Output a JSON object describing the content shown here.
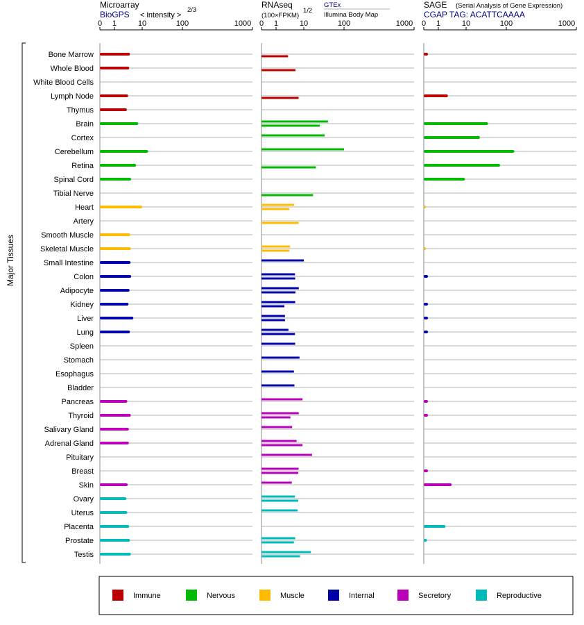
{
  "panels": [
    {
      "title": "Microarray",
      "subtitle": "BioGPS",
      "unit_label": "< intensity >",
      "unit_exp": "2/3",
      "source_label": "",
      "scale_labels": [
        "0",
        "1",
        "10",
        "100",
        "1000"
      ],
      "rows": [
        [
          3.6
        ],
        [
          3.4
        ],
        [
          null
        ],
        [
          3.1
        ],
        [
          2.8
        ],
        [
          7.2
        ],
        [
          null
        ],
        [
          14.0
        ],
        [
          6.0
        ],
        [
          4.0
        ],
        [
          null
        ],
        [
          10.0
        ],
        [
          null
        ],
        [
          3.7
        ],
        [
          3.9
        ],
        [
          3.8
        ],
        [
          4.0
        ],
        [
          3.5
        ],
        [
          3.2
        ],
        [
          4.8
        ],
        [
          3.6
        ],
        [
          null
        ],
        [
          null
        ],
        [
          null
        ],
        [
          null
        ],
        [
          2.9
        ],
        [
          3.9
        ],
        [
          3.3
        ],
        [
          3.3
        ],
        [
          null
        ],
        [
          null
        ],
        [
          3.0
        ],
        [
          2.7
        ],
        [
          2.9
        ],
        [
          3.4
        ],
        [
          3.6
        ],
        [
          3.9
        ]
      ]
    },
    {
      "title": "RNAseq",
      "subtitle": "",
      "unit_label": "(100×FPKM)",
      "unit_exp": "1/2",
      "source_label": "GTEx",
      "source_sub": "Illumina Body Map",
      "scale_labels": [
        "0",
        "1",
        "10",
        "100",
        "1000"
      ],
      "rows": [
        [
          null,
          2.7
        ],
        [
          null,
          5.0
        ],
        [
          null,
          null
        ],
        [
          null,
          6.5
        ],
        [
          null,
          null
        ],
        [
          40.0,
          25.0
        ],
        [
          33.0,
          null
        ],
        [
          100.0,
          null
        ],
        [
          null,
          20.0
        ],
        [
          null,
          null
        ],
        [
          null,
          17.0
        ],
        [
          4.5,
          3.0
        ],
        [
          null,
          6.5
        ],
        [
          null,
          null
        ],
        [
          3.2,
          3.0
        ],
        [
          10.0,
          null
        ],
        [
          4.8,
          4.9
        ],
        [
          6.6,
          5.0
        ],
        [
          4.9,
          2.0
        ],
        [
          2.1,
          2.1
        ],
        [
          2.8,
          4.8
        ],
        [
          4.9,
          null
        ],
        [
          7.0,
          null
        ],
        [
          4.4,
          null
        ],
        [
          4.6,
          null
        ],
        [
          9.0,
          null
        ],
        [
          6.6,
          3.3
        ],
        [
          3.8,
          null
        ],
        [
          5.5,
          9.0
        ],
        [
          16.0,
          null
        ],
        [
          6.5,
          6.3
        ],
        [
          3.7,
          null
        ],
        [
          4.8,
          6.3
        ],
        [
          6.0,
          null
        ],
        [
          null,
          null
        ],
        [
          4.9,
          4.4
        ],
        [
          15.0,
          7.3
        ]
      ]
    },
    {
      "title": "SAGE",
      "subtitle": "CGAP TAG: ACATTCAAAA",
      "unit_label": "",
      "unit_exp": "",
      "source_label": "(Serial Analysis of Gene Expression)",
      "scale_labels": [
        "0",
        "1",
        "10",
        "100",
        "1000"
      ],
      "rows": [
        [
          0.15
        ],
        [
          null
        ],
        [
          null
        ],
        [
          2.2
        ],
        [
          null
        ],
        [
          35.0
        ],
        [
          22.0
        ],
        [
          130.0
        ],
        [
          70.0
        ],
        [
          9.0
        ],
        [
          null
        ],
        [
          0.05
        ],
        [
          null
        ],
        [
          null
        ],
        [
          0.05
        ],
        [
          null
        ],
        [
          0.15
        ],
        [
          null
        ],
        [
          0.15
        ],
        [
          0.15
        ],
        [
          0.15
        ],
        [
          null
        ],
        [
          null
        ],
        [
          null
        ],
        [
          null
        ],
        [
          0.15
        ],
        [
          0.15
        ],
        [
          null
        ],
        [
          null
        ],
        [
          null
        ],
        [
          0.15
        ],
        [
          3.0
        ],
        [
          null
        ],
        [
          null
        ],
        [
          1.8
        ],
        [
          0.1
        ],
        [
          null
        ]
      ]
    }
  ],
  "tissues": [
    "Bone Marrow",
    "Whole Blood",
    "White Blood Cells",
    "Lymph Node",
    "Thymus",
    "Brain",
    "Cortex",
    "Cerebellum",
    "Retina",
    "Spinal Cord",
    "Tibial Nerve",
    "Heart",
    "Artery",
    "Smooth Muscle",
    "Skeletal Muscle",
    "Small Intestine",
    "Colon",
    "Adipocyte",
    "Kidney",
    "Liver",
    "Lung",
    "Spleen",
    "Stomach",
    "Esophagus",
    "Bladder",
    "Pancreas",
    "Thyroid",
    "Salivary Gland",
    "Adrenal Gland",
    "Pituitary",
    "Breast",
    "Skin",
    "Ovary",
    "Uterus",
    "Placenta",
    "Prostate",
    "Testis"
  ],
  "tissue_group": [
    0,
    0,
    0,
    0,
    0,
    1,
    1,
    1,
    1,
    1,
    1,
    2,
    2,
    2,
    2,
    3,
    3,
    3,
    3,
    3,
    3,
    3,
    3,
    3,
    3,
    4,
    4,
    4,
    4,
    4,
    4,
    4,
    5,
    5,
    5,
    5,
    5
  ],
  "y_axis_label": "Major Tissues",
  "legend": [
    {
      "name": "Immune",
      "color": "#bb0000"
    },
    {
      "name": "Nervous",
      "color": "#00bb00"
    },
    {
      "name": "Muscle",
      "color": "#ffbb00"
    },
    {
      "name": "Internal",
      "color": "#0000aa"
    },
    {
      "name": "Secretory",
      "color": "#bb00bb"
    },
    {
      "name": "Reproductive",
      "color": "#00bbbb"
    }
  ],
  "chart_data": {
    "type": "bar",
    "categories": [
      "Bone Marrow",
      "Whole Blood",
      "White Blood Cells",
      "Lymph Node",
      "Thymus",
      "Brain",
      "Cortex",
      "Cerebellum",
      "Retina",
      "Spinal Cord",
      "Tibial Nerve",
      "Heart",
      "Artery",
      "Smooth Muscle",
      "Skeletal Muscle",
      "Small Intestine",
      "Colon",
      "Adipocyte",
      "Kidney",
      "Liver",
      "Lung",
      "Spleen",
      "Stomach",
      "Esophagus",
      "Bladder",
      "Pancreas",
      "Thyroid",
      "Salivary Gland",
      "Adrenal Gland",
      "Pituitary",
      "Breast",
      "Skin",
      "Ovary",
      "Uterus",
      "Placenta",
      "Prostate",
      "Testis"
    ],
    "orientation": "horizontal",
    "xscale": "power (0, 1, 10, 100, 1000 ticks)",
    "xlim": [
      0,
      1000
    ],
    "ylabel": "Major Tissues",
    "legend_position": "bottom",
    "grid": true
  }
}
